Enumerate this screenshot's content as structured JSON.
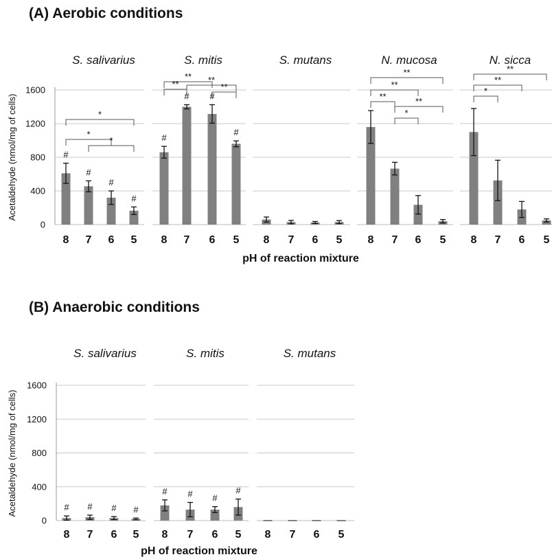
{
  "panel_a_title": "(A) Aerobic conditions",
  "panel_b_title": "(B) Anaerobic conditions",
  "chart_data": [
    {
      "type": "bar",
      "title": "(A) Aerobic conditions",
      "xlabel": "pH of reaction mixture",
      "ylabel": "Acetaldehyde (nmol/mg of cells)",
      "ylim": [
        0,
        1600
      ],
      "yticks": [
        "0",
        "400",
        "800",
        "1200",
        "1600"
      ],
      "grid": true,
      "categories": [
        "8",
        "7",
        "6",
        "5"
      ],
      "panels": [
        {
          "name": "S. salivarius",
          "values": [
            610,
            455,
            320,
            165
          ],
          "errors": [
            120,
            65,
            80,
            45
          ],
          "marks": [
            "#",
            "#",
            "#",
            "#"
          ],
          "brackets": [
            {
              "from": 0,
              "to": 3,
              "label": "*"
            },
            {
              "from": 0,
              "to": 2,
              "label": "*"
            },
            {
              "from": 1,
              "to": 3,
              "label": "*"
            }
          ]
        },
        {
          "name": "S. mitis",
          "values": [
            860,
            1400,
            1315,
            960
          ],
          "errors": [
            70,
            25,
            110,
            35
          ],
          "marks": [
            "#",
            "#",
            "#",
            "#"
          ],
          "brackets": [
            {
              "from": 0,
              "to": 2,
              "label": "**"
            },
            {
              "from": 0,
              "to": 1,
              "label": "**"
            },
            {
              "from": 1,
              "to": 3,
              "label": "**"
            },
            {
              "from": 2,
              "to": 3,
              "label": "**"
            }
          ]
        },
        {
          "name": "S. mutans",
          "values": [
            60,
            30,
            25,
            30
          ],
          "errors": [
            30,
            20,
            12,
            18
          ],
          "marks": [
            "",
            "",
            "",
            ""
          ],
          "brackets": []
        },
        {
          "name": "N. mucosa",
          "values": [
            1160,
            665,
            235,
            40
          ],
          "errors": [
            195,
            75,
            110,
            20
          ],
          "marks": [
            "",
            "",
            "",
            ""
          ],
          "brackets": [
            {
              "from": 0,
              "to": 3,
              "label": "**"
            },
            {
              "from": 0,
              "to": 2,
              "label": "**"
            },
            {
              "from": 0,
              "to": 1,
              "label": "**"
            },
            {
              "from": 1,
              "to": 3,
              "label": "**"
            },
            {
              "from": 1,
              "to": 2,
              "label": "*"
            }
          ]
        },
        {
          "name": "N. sicca",
          "values": [
            1100,
            525,
            180,
            50
          ],
          "errors": [
            280,
            240,
            95,
            18
          ],
          "marks": [
            "",
            "",
            "",
            ""
          ],
          "brackets": [
            {
              "from": 0,
              "to": 3,
              "label": "**"
            },
            {
              "from": 0,
              "to": 2,
              "label": "**"
            },
            {
              "from": 0,
              "to": 1,
              "label": "*"
            }
          ]
        }
      ]
    },
    {
      "type": "bar",
      "title": "(B) Anaerobic conditions",
      "xlabel": "pH of reaction mixture",
      "ylabel": "Acetaldehyde (nmol/mg of cells)",
      "ylim": [
        0,
        1600
      ],
      "yticks": [
        "0",
        "400",
        "800",
        "1200",
        "1600"
      ],
      "grid": true,
      "categories": [
        "8",
        "7",
        "6",
        "5"
      ],
      "panels": [
        {
          "name": "S. salivarius",
          "values": [
            30,
            40,
            30,
            20
          ],
          "errors": [
            25,
            25,
            18,
            10
          ],
          "marks": [
            "#",
            "#",
            "#",
            "#"
          ],
          "brackets": []
        },
        {
          "name": "S. mitis",
          "values": [
            180,
            130,
            130,
            160
          ],
          "errors": [
            65,
            85,
            35,
            95
          ],
          "marks": [
            "#",
            "#",
            "#",
            "#"
          ],
          "brackets": []
        },
        {
          "name": "S. mutans",
          "values": [
            0,
            0,
            0,
            0
          ],
          "errors": [
            0,
            0,
            0,
            0
          ],
          "marks": [
            "",
            "",
            "",
            ""
          ],
          "brackets": []
        }
      ]
    }
  ]
}
